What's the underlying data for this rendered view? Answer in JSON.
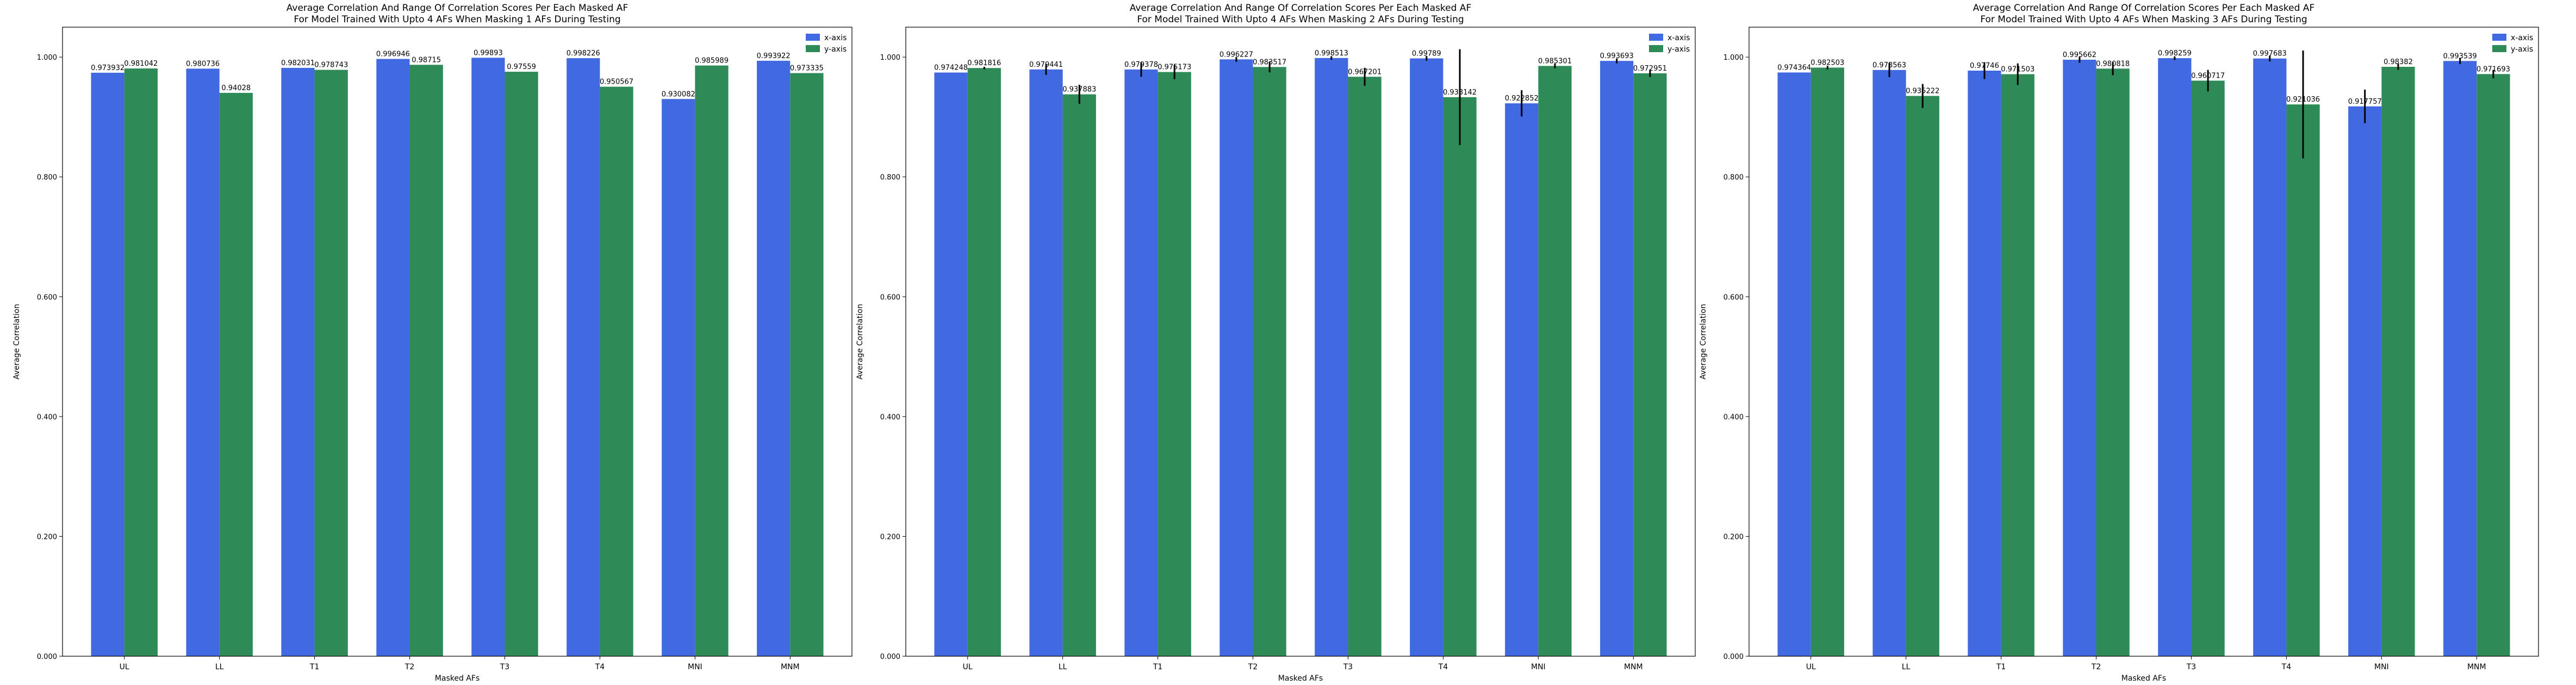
{
  "chart_data": [
    {
      "type": "bar",
      "title": "Average Correlation And Range Of Correlation Scores Per Each Masked AF",
      "subtitle": "For Model Trained With Upto 4 AFs When Masking 1 AFs During Testing",
      "xlabel": "Masked AFs",
      "ylabel": "Average Correlation",
      "ylim": [
        0,
        1.05
      ],
      "yticks": [
        "0.000",
        "0.200",
        "0.400",
        "0.600",
        "0.800",
        "1.000"
      ],
      "categories": [
        "UL",
        "LL",
        "T1",
        "T2",
        "T3",
        "T4",
        "MNI",
        "MNM"
      ],
      "legend": "top-right",
      "series": [
        {
          "name": "x-axis",
          "color": "#4169e1",
          "values": [
            0.973932,
            0.980736,
            0.982031,
            0.996946,
            0.99893,
            0.998226,
            0.930082,
            0.993922
          ],
          "labels": [
            "0.973932",
            "0.980736",
            "0.982031",
            "0.996946",
            "0.99893",
            "0.998226",
            "0.930082",
            "0.993922"
          ],
          "errors": [
            0,
            0,
            0,
            0,
            0,
            0,
            0,
            0
          ]
        },
        {
          "name": "y-axis",
          "color": "#2e8b57",
          "values": [
            0.981042,
            0.94028,
            0.978743,
            0.98715,
            0.97559,
            0.950567,
            0.985989,
            0.973335
          ],
          "labels": [
            "0.981042",
            "0.94028",
            "0.978743",
            "0.98715",
            "0.97559",
            "0.950567",
            "0.985989",
            "0.973335"
          ],
          "errors": [
            0,
            0,
            0,
            0,
            0,
            0,
            0,
            0
          ]
        }
      ]
    },
    {
      "type": "bar",
      "title": "Average Correlation And Range Of Correlation Scores Per Each Masked AF",
      "subtitle": "For Model Trained With Upto 4 AFs When Masking 2 AFs During Testing",
      "xlabel": "Masked AFs",
      "ylabel": "Average Correlation",
      "ylim": [
        0,
        1.05
      ],
      "yticks": [
        "0.000",
        "0.200",
        "0.400",
        "0.600",
        "0.800",
        "1.000"
      ],
      "categories": [
        "UL",
        "LL",
        "T1",
        "T2",
        "T3",
        "T4",
        "MNI",
        "MNM"
      ],
      "legend": "top-right",
      "series": [
        {
          "name": "x-axis",
          "color": "#4169e1",
          "values": [
            0.974248,
            0.979441,
            0.979378,
            0.996227,
            0.998513,
            0.99789,
            0.922852,
            0.993693
          ],
          "labels": [
            "0.974248",
            "0.979441",
            "0.979378",
            "0.996227",
            "0.998513",
            "0.99789",
            "0.922852",
            "0.993693"
          ],
          "errors": [
            0,
            0.009,
            0.012,
            0.004,
            0.003,
            0.004,
            0.022,
            0.004
          ]
        },
        {
          "name": "y-axis",
          "color": "#2e8b57",
          "values": [
            0.981816,
            0.937883,
            0.975173,
            0.983517,
            0.967201,
            0.933142,
            0.985301,
            0.972951
          ],
          "labels": [
            "0.981816",
            "0.937883",
            "0.975173",
            "0.983517",
            "0.967201",
            "0.933142",
            "0.985301",
            "0.972951"
          ],
          "errors": [
            0.002,
            0.016,
            0.012,
            0.009,
            0.015,
            0.08,
            0.004,
            0.006
          ]
        }
      ]
    },
    {
      "type": "bar",
      "title": "Average Correlation And Range Of Correlation Scores Per Each Masked AF",
      "subtitle": "For Model Trained With Upto 4 AFs When Masking 3 AFs During Testing",
      "xlabel": "Masked AFs",
      "ylabel": "Average Correlation",
      "ylim": [
        0,
        1.05
      ],
      "yticks": [
        "0.000",
        "0.200",
        "0.400",
        "0.600",
        "0.800",
        "1.000"
      ],
      "categories": [
        "UL",
        "LL",
        "T1",
        "T2",
        "T3",
        "T4",
        "MNI",
        "MNM"
      ],
      "legend": "top-right",
      "series": [
        {
          "name": "x-axis",
          "color": "#4169e1",
          "values": [
            0.974364,
            0.978563,
            0.97746,
            0.995662,
            0.998259,
            0.997683,
            0.917757,
            0.993539
          ],
          "labels": [
            "0.974364",
            "0.978563",
            "0.97746",
            "0.995662",
            "0.998259",
            "0.997683",
            "0.917757",
            "0.993539"
          ],
          "errors": [
            0,
            0.012,
            0.014,
            0.005,
            0.003,
            0.005,
            0.028,
            0.005
          ]
        },
        {
          "name": "y-axis",
          "color": "#2e8b57",
          "values": [
            0.982503,
            0.935222,
            0.971503,
            0.980818,
            0.960717,
            0.921036,
            0.98382,
            0.971693
          ],
          "labels": [
            "0.982503",
            "0.935222",
            "0.971503",
            "0.980818",
            "0.960717",
            "0.921036",
            "0.98382",
            "0.971693"
          ],
          "errors": [
            0.003,
            0.02,
            0.018,
            0.011,
            0.018,
            0.09,
            0.005,
            0.007
          ]
        }
      ]
    }
  ]
}
